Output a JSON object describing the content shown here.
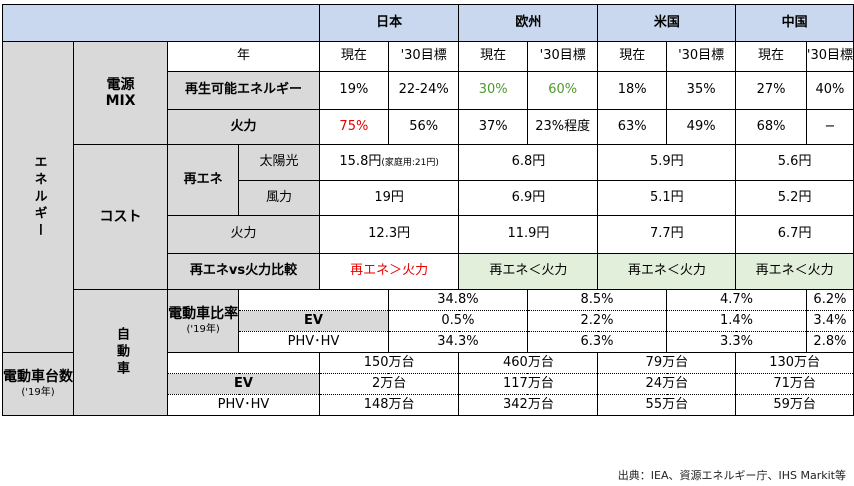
{
  "regions": [
    "日本",
    "欧州",
    "米国",
    "中国"
  ],
  "section_energy": "エネルギー",
  "section_auto": "自動車",
  "year_label": "年",
  "current": "現在",
  "target": "'30目標",
  "power_mix": "電源\nMIX",
  "renewable_label": "再生可能エネルギー",
  "thermal_label": "火力",
  "renewable_values": [
    [
      "19%",
      "22-24%"
    ],
    [
      "30%",
      "60%"
    ],
    [
      "18%",
      "35%"
    ],
    [
      "27%",
      "40%"
    ]
  ],
  "thermal_values": [
    [
      "75%",
      "56%"
    ],
    [
      "37%",
      "23%程度"
    ],
    [
      "63%",
      "49%"
    ],
    [
      "68%",
      "−"
    ]
  ],
  "cost_label": "コスト",
  "re_label": "再エネ",
  "solar_label": "太陽光",
  "wind_label": "風力",
  "cost_thermal_label": "火力",
  "solar_jp_main": "15.8円",
  "solar_jp_note": "(家庭用:21円)",
  "solar_values": [
    "6.8円",
    "5.9円",
    "5.6円"
  ],
  "wind_values": [
    "19円",
    "6.9円",
    "5.1円",
    "5.2円"
  ],
  "cost_thermal_values": [
    "12.3円",
    "11.9円",
    "7.7円",
    "6.7円"
  ],
  "compare_label": "再エネvs火力比較",
  "compare_values": [
    "再エネ＞火力",
    "再エネ＜火力",
    "再エネ＜火力",
    "再エネ＜火力"
  ],
  "ev_ratio_label": "電動車比率",
  "ev_ratio_sub": "('19年)",
  "ev_count_label": "電動車台数",
  "ev_count_sub": "('19年)",
  "ev_label": "EV",
  "phv_label": "PHV･HV",
  "ev_ratio_total": [
    "34.8%",
    "8.5%",
    "4.7%",
    "6.2%"
  ],
  "ev_ratio_ev": [
    "0.5%",
    "2.2%",
    "1.4%",
    "3.4%"
  ],
  "ev_ratio_phv": [
    "34.3%",
    "6.3%",
    "3.3%",
    "2.8%"
  ],
  "ev_count_total": [
    "150万台",
    "460万台",
    "79万台",
    "130万台"
  ],
  "ev_count_ev": [
    "2万台",
    "117万台",
    "24万台",
    "71万台"
  ],
  "ev_count_phv": [
    "148万台",
    "342万台",
    "55万台",
    "59万台"
  ],
  "source": "出典：IEA、資源エネルギー庁、IHS Markit等",
  "colors": {
    "header_blue": "#c9d8ee",
    "gray": "#d9d9d9",
    "light_green": "#e2efda",
    "red": "#e60000",
    "green": "#4e9a2e"
  }
}
